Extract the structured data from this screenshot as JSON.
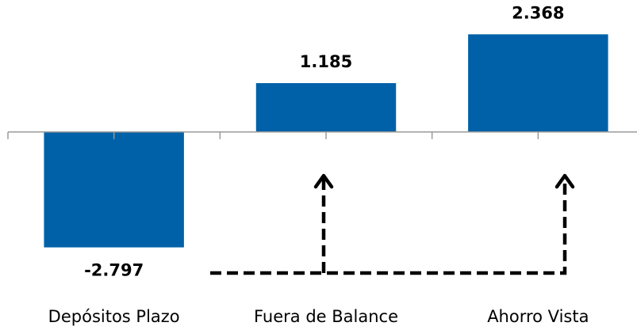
{
  "chart_data": {
    "type": "bar",
    "categories": [
      "Depósitos Plazo",
      "Fuera de Balance",
      "Ahorro Vista"
    ],
    "values": [
      -2797,
      1185,
      2368
    ],
    "value_labels": [
      "-2.797",
      "1.185",
      "2.368"
    ],
    "color": "#0061a8",
    "ylim": [
      -4800,
      3200
    ]
  }
}
